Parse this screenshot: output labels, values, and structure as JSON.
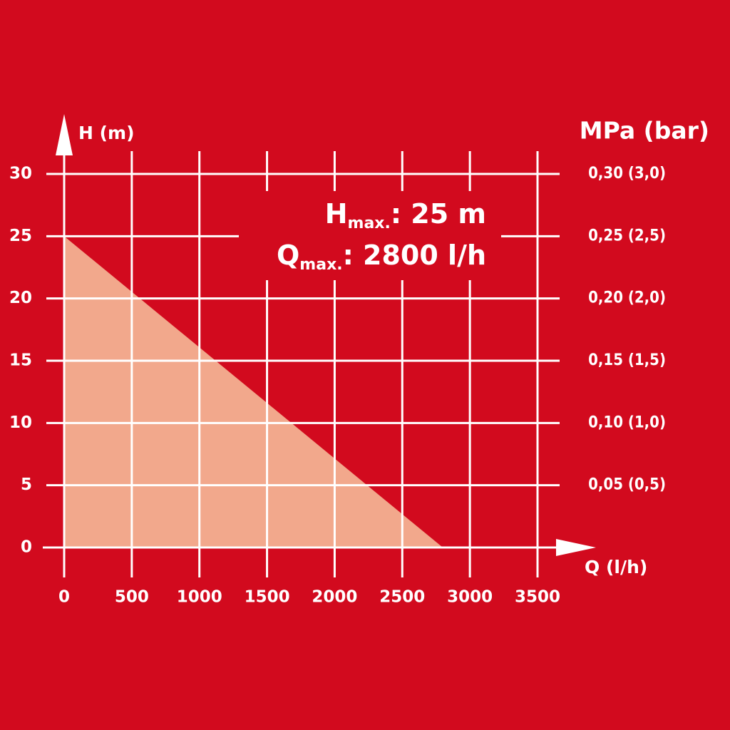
{
  "chart_data": {
    "type": "area",
    "x": [
      0,
      2800
    ],
    "values": [
      25,
      0
    ],
    "color": "#f2a88c",
    "xlabel": "Q (l/h)",
    "ylabel": "H (m)",
    "y2label": "MPa (bar)",
    "xlim": [
      0,
      3500
    ],
    "xticks": [
      0,
      500,
      1000,
      1500,
      2000,
      2500,
      3000,
      3500
    ],
    "ylim": [
      0,
      30
    ],
    "yticks": [
      0,
      5,
      10,
      15,
      20,
      25,
      30
    ],
    "y2lim": [
      0,
      0.3
    ],
    "y2ticks": [
      {
        "value": 0.05,
        "label": "0,05 (0,5)"
      },
      {
        "value": 0.1,
        "label": "0,10 (1,0)"
      },
      {
        "value": 0.15,
        "label": "0,15 (1,5)"
      },
      {
        "value": 0.2,
        "label": "0,20 (2,0)"
      },
      {
        "value": 0.25,
        "label": "0,25 (2,5)"
      },
      {
        "value": 0.3,
        "label": "0,30 (3,0)"
      }
    ],
    "grid": true,
    "annotations": [
      {
        "main": "H",
        "sub": "max.",
        "rest": ": 25 m"
      },
      {
        "main": "Q",
        "sub": "max.",
        "rest": ": 2800 l/h"
      }
    ]
  }
}
